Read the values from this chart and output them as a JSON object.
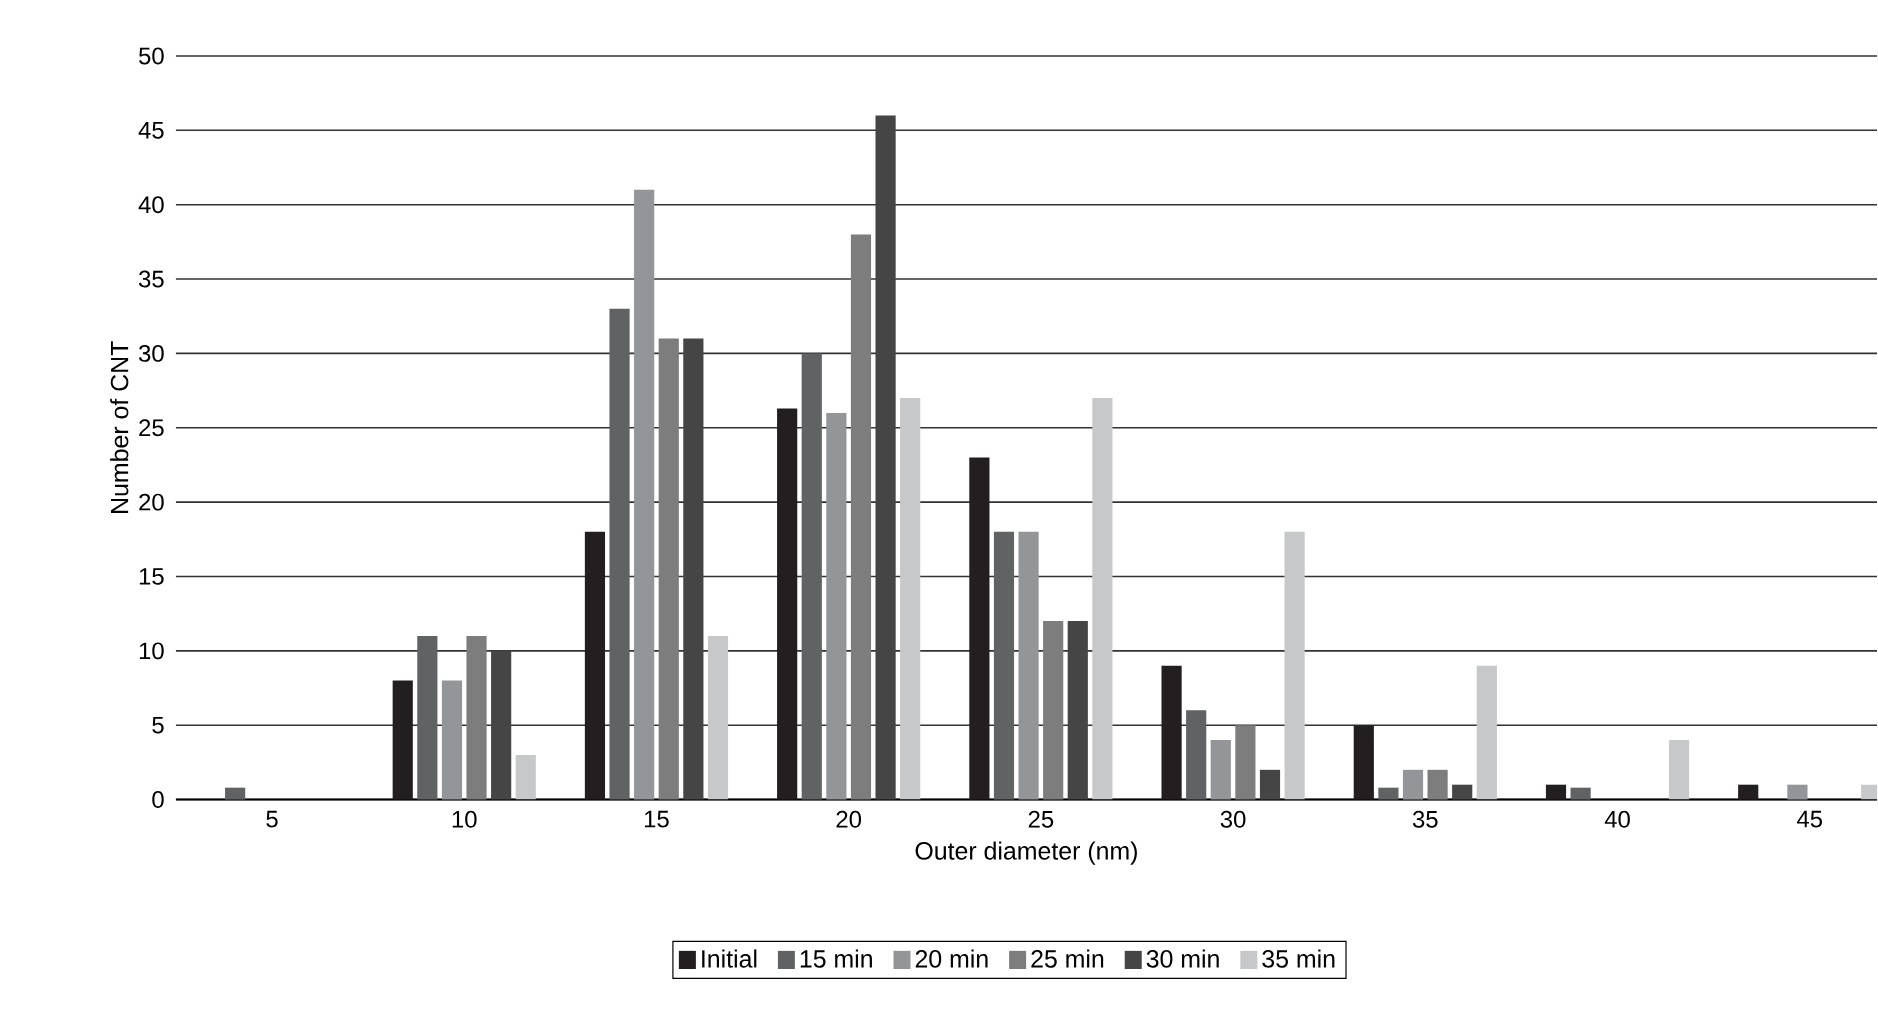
{
  "chart_data": {
    "type": "bar",
    "xlabel": "Outer diameter (nm)",
    "ylabel": "Number of CNT",
    "categories": [
      "5",
      "10",
      "15",
      "20",
      "25",
      "30",
      "35",
      "40",
      "45"
    ],
    "series": [
      {
        "name": "Initial",
        "color": "#231f20",
        "values": [
          0,
          8,
          18,
          26.3,
          23,
          9,
          5,
          1,
          1
        ]
      },
      {
        "name": "15 min",
        "color": "#616264",
        "values": [
          0.8,
          11,
          33,
          30,
          18,
          6,
          0.8,
          0.8,
          0
        ]
      },
      {
        "name": "20 min",
        "color": "#939598",
        "values": [
          0,
          8,
          41,
          26,
          18,
          4,
          2,
          0,
          1
        ]
      },
      {
        "name": "25 min",
        "color": "#7d7d7d",
        "values": [
          0,
          11,
          31,
          38,
          12,
          5,
          2,
          0,
          0
        ]
      },
      {
        "name": "30 min",
        "color": "#454545",
        "values": [
          0,
          10,
          31,
          46,
          12,
          2,
          1,
          0,
          0
        ]
      },
      {
        "name": "35 min",
        "color": "#c7c8ca",
        "values": [
          0,
          3,
          11,
          27,
          27,
          18,
          9,
          4,
          1
        ]
      }
    ],
    "ylim": [
      0,
      50
    ],
    "yticks": [
      0,
      5,
      10,
      15,
      20,
      25,
      30,
      35,
      40,
      45,
      50
    ],
    "grid": "y",
    "legend": "bottom"
  }
}
